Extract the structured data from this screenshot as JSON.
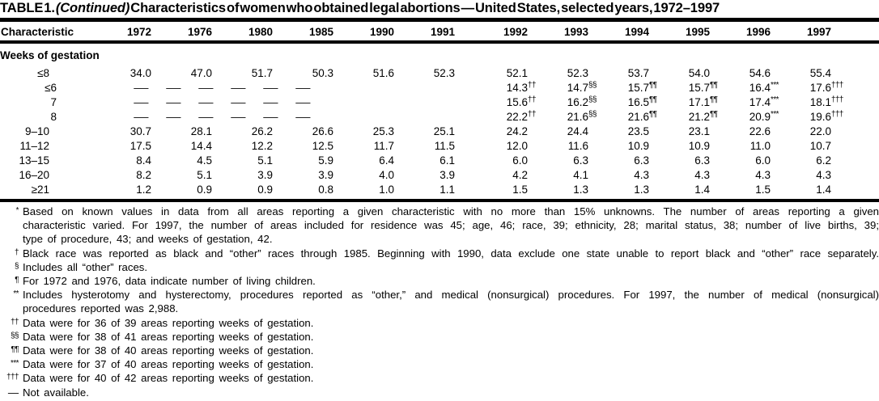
{
  "colors": {
    "text": "#000000",
    "background": "#ffffff",
    "rule": "#000000"
  },
  "title": {
    "prefix": "TABLE 1.",
    "continued": "(Continued)",
    "rest": "Characteristics of women who obtained legal abortions — United States, selected years, 1972–1997"
  },
  "table": {
    "char_header": "Characteristic",
    "years": [
      "1972",
      "1976",
      "1980",
      "1985",
      "1990",
      "1991",
      "1992",
      "1993",
      "1994",
      "1995",
      "1996",
      "1997"
    ],
    "section": "Weeks of gestation",
    "rows": [
      {
        "label": "≤8",
        "indent": 1,
        "values": [
          {
            "v": "34.0"
          },
          {
            "v": "47.0"
          },
          {
            "v": "51.7"
          },
          {
            "v": "50.3"
          },
          {
            "v": "51.6"
          },
          {
            "v": "52.3"
          },
          {
            "v": "52.1"
          },
          {
            "v": "52.3"
          },
          {
            "v": "53.7"
          },
          {
            "v": "54.0"
          },
          {
            "v": "54.6"
          },
          {
            "v": "55.4"
          }
        ]
      },
      {
        "label": "≤6",
        "indent": 2,
        "dashes": [
          "—",
          "—",
          "—",
          "—",
          "—",
          "—"
        ],
        "values": [
          null,
          null,
          null,
          null,
          null,
          null,
          {
            "v": "14.3",
            "sup": "††"
          },
          {
            "v": "14.7",
            "sup": "§§"
          },
          {
            "v": "15.7",
            "sup": "¶¶"
          },
          {
            "v": "15.7",
            "sup": "¶¶"
          },
          {
            "v": "16.4",
            "sup": "***"
          },
          {
            "v": "17.6",
            "sup": "†††"
          }
        ]
      },
      {
        "label": "7",
        "indent": 2,
        "dashes": [
          "—",
          "—",
          "—",
          "—",
          "—",
          "—"
        ],
        "values": [
          null,
          null,
          null,
          null,
          null,
          null,
          {
            "v": "15.6",
            "sup": "††"
          },
          {
            "v": "16.2",
            "sup": "§§"
          },
          {
            "v": "16.5",
            "sup": "¶¶"
          },
          {
            "v": "17.1",
            "sup": "¶¶"
          },
          {
            "v": "17.4",
            "sup": "***"
          },
          {
            "v": "18.1",
            "sup": "†††"
          }
        ]
      },
      {
        "label": "8",
        "indent": 2,
        "dashes": [
          "—",
          "—",
          "—",
          "—",
          "—",
          "—"
        ],
        "values": [
          null,
          null,
          null,
          null,
          null,
          null,
          {
            "v": "22.2",
            "sup": "††"
          },
          {
            "v": "21.6",
            "sup": "§§"
          },
          {
            "v": "21.6",
            "sup": "¶¶"
          },
          {
            "v": "21.2",
            "sup": "¶¶"
          },
          {
            "v": "20.9",
            "sup": "***"
          },
          {
            "v": "19.6",
            "sup": "†††"
          }
        ]
      },
      {
        "label": "9–10",
        "indent": 1,
        "values": [
          {
            "v": "30.7"
          },
          {
            "v": "28.1"
          },
          {
            "v": "26.2"
          },
          {
            "v": "26.6"
          },
          {
            "v": "25.3"
          },
          {
            "v": "25.1"
          },
          {
            "v": "24.2"
          },
          {
            "v": "24.4"
          },
          {
            "v": "23.5"
          },
          {
            "v": "23.1"
          },
          {
            "v": "22.6"
          },
          {
            "v": "22.0"
          }
        ]
      },
      {
        "label": "11–12",
        "indent": 1,
        "values": [
          {
            "v": "17.5"
          },
          {
            "v": "14.4"
          },
          {
            "v": "12.2"
          },
          {
            "v": "12.5"
          },
          {
            "v": "11.7"
          },
          {
            "v": "11.5"
          },
          {
            "v": "12.0"
          },
          {
            "v": "11.6"
          },
          {
            "v": "10.9"
          },
          {
            "v": "10.9"
          },
          {
            "v": "11.0"
          },
          {
            "v": "10.7"
          }
        ]
      },
      {
        "label": "13–15",
        "indent": 1,
        "values": [
          {
            "v": "8.4"
          },
          {
            "v": "4.5"
          },
          {
            "v": "5.1"
          },
          {
            "v": "5.9"
          },
          {
            "v": "6.4"
          },
          {
            "v": "6.1"
          },
          {
            "v": "6.0"
          },
          {
            "v": "6.3"
          },
          {
            "v": "6.3"
          },
          {
            "v": "6.3"
          },
          {
            "v": "6.0"
          },
          {
            "v": "6.2"
          }
        ]
      },
      {
        "label": "16–20",
        "indent": 1,
        "values": [
          {
            "v": "8.2"
          },
          {
            "v": "5.1"
          },
          {
            "v": "3.9"
          },
          {
            "v": "3.9"
          },
          {
            "v": "4.0"
          },
          {
            "v": "3.9"
          },
          {
            "v": "4.2"
          },
          {
            "v": "4.1"
          },
          {
            "v": "4.3"
          },
          {
            "v": "4.3"
          },
          {
            "v": "4.3"
          },
          {
            "v": "4.3"
          }
        ]
      },
      {
        "label": "≥21",
        "indent": 1,
        "values": [
          {
            "v": "1.2"
          },
          {
            "v": "0.9"
          },
          {
            "v": "0.9"
          },
          {
            "v": "0.8"
          },
          {
            "v": "1.0"
          },
          {
            "v": "1.1"
          },
          {
            "v": "1.5"
          },
          {
            "v": "1.3"
          },
          {
            "v": "1.3"
          },
          {
            "v": "1.4"
          },
          {
            "v": "1.5"
          },
          {
            "v": "1.4"
          }
        ]
      }
    ]
  },
  "footnotes": [
    {
      "mark": "*",
      "lines": [
        {
          "t": "Based on known values in data from all areas reporting a given characteristic with no more than 15% unknowns. The number of areas reporting a given",
          "j": true
        },
        {
          "t": "characteristic varied. For 1997, the number of areas included for residence was 45; age, 46; race, 39; ethnicity, 28; marital status, 38; number of live births, 39;",
          "j": true
        },
        {
          "t": "type of procedure, 43; and weeks of gestation, 42.",
          "j": false
        }
      ]
    },
    {
      "mark": "†",
      "lines": [
        {
          "t": "Black race was reported as black and “other” races through 1985. Beginning with 1990, data exclude one state unable to report black and “other” race separately.",
          "j": true
        }
      ]
    },
    {
      "mark": "§",
      "lines": [
        {
          "t": "Includes all “other” races.",
          "j": false
        }
      ]
    },
    {
      "mark": "¶",
      "lines": [
        {
          "t": "For 1972 and 1976, data indicate number of living children.",
          "j": false
        }
      ]
    },
    {
      "mark": "**",
      "lines": [
        {
          "t": "Includes hysterotomy and hysterectomy, procedures reported as “other,” and medical (nonsurgical) procedures. For 1997, the number of medical (nonsurgical)",
          "j": true
        },
        {
          "t": "procedures reported was 2,988.",
          "j": false
        }
      ]
    },
    {
      "mark": "††",
      "lines": [
        {
          "t": "Data were for 36 of 39 areas reporting weeks of gestation.",
          "j": false
        }
      ]
    },
    {
      "mark": "§§",
      "lines": [
        {
          "t": "Data were for 38 of 41 areas reporting weeks of gestation.",
          "j": false
        }
      ]
    },
    {
      "mark": "¶¶",
      "lines": [
        {
          "t": "Data were for 38 of 40 areas reporting weeks of gestation.",
          "j": false
        }
      ]
    },
    {
      "mark": "***",
      "lines": [
        {
          "t": "Data were for 37 of 40 areas reporting weeks of gestation.",
          "j": false
        }
      ]
    },
    {
      "mark": "†††",
      "lines": [
        {
          "t": "Data were for 40 of 42 areas reporting weeks of gestation.",
          "j": false
        }
      ]
    },
    {
      "mark": "—",
      "dash": true,
      "lines": [
        {
          "t": "Not available.",
          "j": false
        }
      ]
    }
  ]
}
